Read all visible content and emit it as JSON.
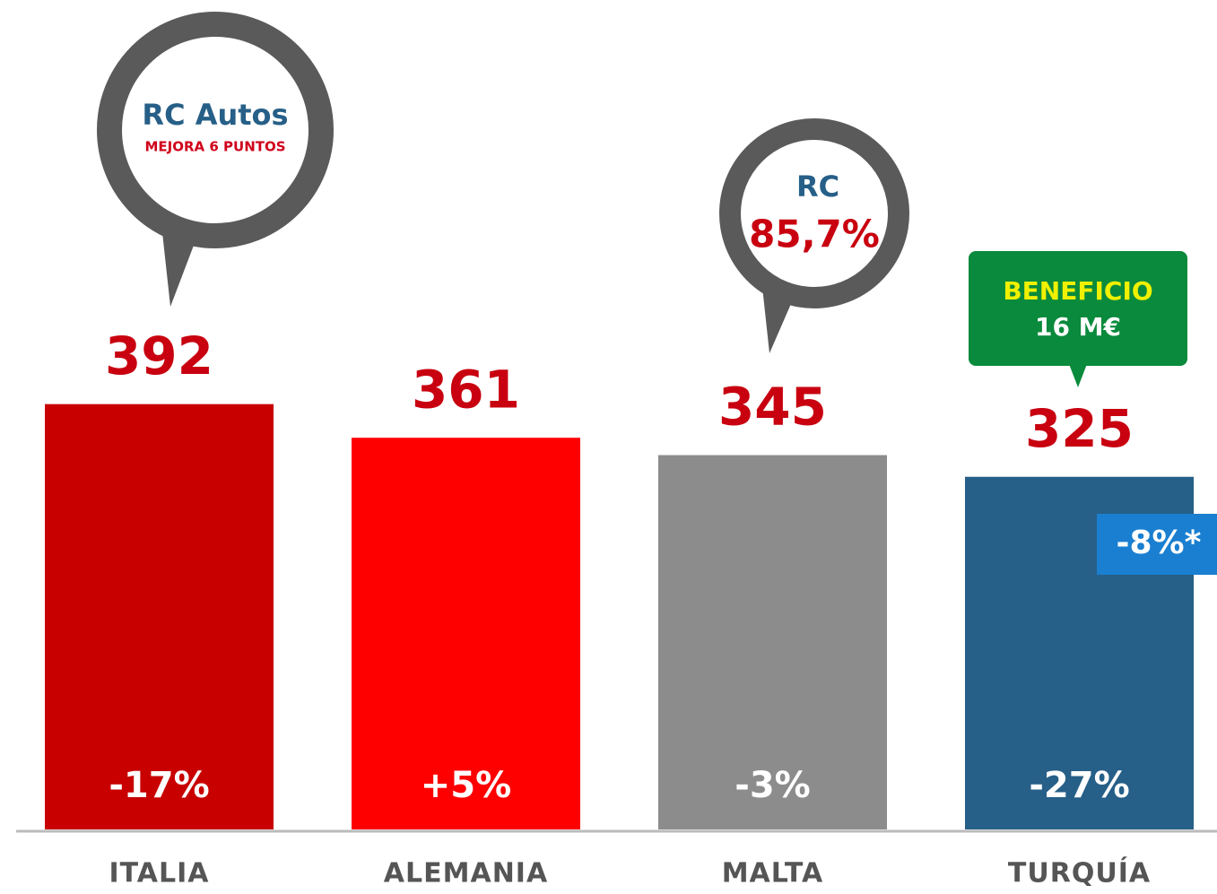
{
  "chart_data": {
    "type": "bar",
    "categories": [
      "ITALIA",
      "ALEMANIA",
      "MALTA",
      "TURQUÍA"
    ],
    "values": [
      392,
      361,
      345,
      325
    ],
    "colors": [
      "#c80000",
      "#ff0000",
      "#8c8c8c",
      "#265f87"
    ],
    "changes": [
      "-17%",
      "+5%",
      "-3%",
      "-27%"
    ],
    "annotations": {
      "italia": [
        "RC Autos",
        "MEJORA 6 PUNTOS"
      ],
      "malta": [
        "RC",
        "85,7%"
      ],
      "turquia": [
        "BENEFICIO",
        "16 M€"
      ],
      "turquia_tag": "-8%*"
    }
  }
}
